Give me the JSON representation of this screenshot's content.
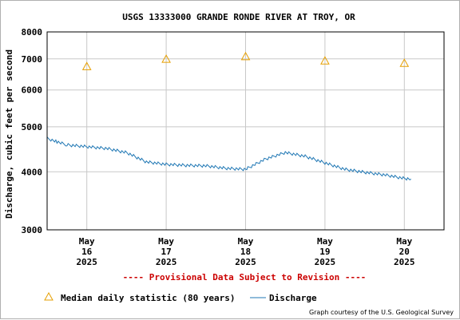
{
  "chart_data": {
    "type": "line",
    "title": "USGS 13333000 GRANDE RONDE RIVER AT TROY, OR",
    "ylabel": "Discharge, cubic feet per second",
    "xlabel": "",
    "y_scale": "log",
    "ylim": [
      3000,
      8000
    ],
    "y_ticks": [
      3000,
      4000,
      5000,
      6000,
      7000,
      8000
    ],
    "y_tick_labels": [
      "3000",
      "4000",
      "5000",
      "6000",
      "7000",
      "8000"
    ],
    "xlim": [
      "2025-05-15T12:00",
      "2025-05-20T12:00"
    ],
    "x_ticks": [
      {
        "value": "2025-05-16T00:00",
        "lines": [
          "May",
          "16",
          "2025"
        ]
      },
      {
        "value": "2025-05-17T00:00",
        "lines": [
          "May",
          "17",
          "2025"
        ]
      },
      {
        "value": "2025-05-18T00:00",
        "lines": [
          "May",
          "18",
          "2025"
        ]
      },
      {
        "value": "2025-05-19T00:00",
        "lines": [
          "May",
          "19",
          "2025"
        ]
      },
      {
        "value": "2025-05-20T00:00",
        "lines": [
          "May",
          "20",
          "2025"
        ]
      }
    ],
    "grid": true,
    "series": [
      {
        "name": "Median daily statistic (80 years)",
        "type": "scatter",
        "marker": "triangle",
        "color": "#e69f00",
        "x": [
          "2025-05-16T00:00",
          "2025-05-17T00:00",
          "2025-05-18T00:00",
          "2025-05-19T00:00",
          "2025-05-20T00:00"
        ],
        "y": [
          6740,
          6990,
          7080,
          6930,
          6850
        ]
      },
      {
        "name": "Discharge",
        "type": "line",
        "color": "#1f77b4",
        "x": [
          "2025-05-15T12:00",
          "2025-05-15T15:00",
          "2025-05-15T18:00",
          "2025-05-16T00:00",
          "2025-05-16T06:00",
          "2025-05-16T12:00",
          "2025-05-16T18:00",
          "2025-05-17T00:00",
          "2025-05-17T06:00",
          "2025-05-17T12:00",
          "2025-05-17T18:00",
          "2025-05-18T00:00",
          "2025-05-18T06:00",
          "2025-05-18T12:00",
          "2025-05-18T18:00",
          "2025-05-19T00:00",
          "2025-05-19T06:00",
          "2025-05-19T12:00",
          "2025-05-19T18:00",
          "2025-05-20T00:00",
          "2025-05-20T02:00"
        ],
        "y": [
          4720,
          4640,
          4570,
          4530,
          4490,
          4400,
          4200,
          4150,
          4130,
          4120,
          4070,
          4050,
          4260,
          4400,
          4320,
          4180,
          4050,
          3990,
          3940,
          3870,
          3860
        ]
      }
    ],
    "legend": "bottom-left",
    "annotations": [
      "---- Provisional Data Subject to Revision ----"
    ],
    "credit": "Graph courtesy of the U.S. Geological Survey"
  }
}
